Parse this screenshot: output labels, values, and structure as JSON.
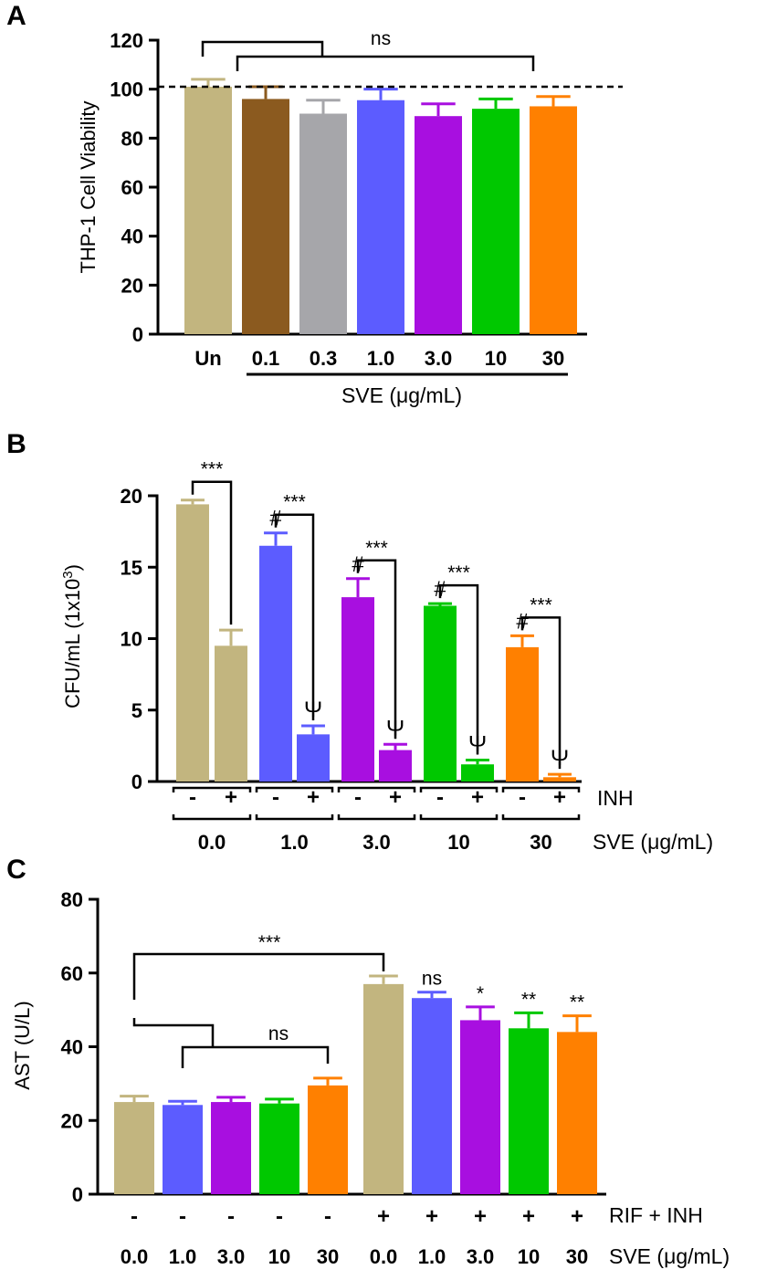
{
  "chart_data": [
    {
      "panel": "A",
      "type": "bar",
      "ylabel": "THP-1 Cell Viability",
      "ylim": [
        0,
        120
      ],
      "yticks": [
        0,
        20,
        40,
        60,
        80,
        100,
        120
      ],
      "categories": [
        "Un",
        "0.1",
        "0.3",
        "1.0",
        "3.0",
        "10",
        "30"
      ],
      "values": [
        101,
        96,
        90,
        95.5,
        89,
        92,
        93
      ],
      "errors": [
        3,
        5,
        5.5,
        4.5,
        5,
        4,
        4
      ],
      "colors": [
        "#c2b57f",
        "#8b5a1f",
        "#a6a6aa",
        "#5c5cff",
        "#a80fe0",
        "#00c800",
        "#ff8000"
      ],
      "reference_line": 101,
      "group_label": "SVE (μg/mL)",
      "annotations": [
        "ns"
      ]
    },
    {
      "panel": "B",
      "type": "bar",
      "ylabel": "CFU/mL (1x10",
      "ylabel_sup": "3",
      "ylabel_close": ")",
      "ylim": [
        0,
        20
      ],
      "yticks": [
        0,
        5,
        10,
        15,
        20
      ],
      "groups": [
        "0.0",
        "1.0",
        "3.0",
        "10",
        "30"
      ],
      "inh": [
        "-",
        "+"
      ],
      "values": [
        19.4,
        9.5,
        16.5,
        3.3,
        12.9,
        2.2,
        12.3,
        1.2,
        9.4,
        0.3
      ],
      "errors": [
        0.3,
        1.1,
        0.9,
        0.6,
        1.3,
        0.4,
        0.15,
        0.3,
        0.8,
        0.2
      ],
      "colors": [
        "#c2b57f",
        "#5c5cff",
        "#a80fe0",
        "#00c800",
        "#ff8000"
      ],
      "row1_label": "INH",
      "row2_label": "SVE (μg/mL)",
      "sig_label": "***",
      "hash_symbol": "#",
      "psi_symbol": "Ψ"
    },
    {
      "panel": "C",
      "type": "bar",
      "ylabel": "AST (U/L)",
      "ylim": [
        0,
        80
      ],
      "yticks": [
        0,
        20,
        40,
        60,
        80
      ],
      "sve": [
        "0.0",
        "1.0",
        "3.0",
        "10",
        "30",
        "0.0",
        "1.0",
        "3.0",
        "10",
        "30"
      ],
      "rif_inh": [
        "-",
        "-",
        "-",
        "-",
        "-",
        "+",
        "+",
        "+",
        "+",
        "+"
      ],
      "values": [
        25,
        24.2,
        25,
        24.6,
        29.5,
        57,
        53.2,
        47.2,
        45,
        44
      ],
      "errors": [
        1.6,
        1,
        1.3,
        1.2,
        2,
        2.2,
        1.6,
        3.6,
        4.2,
        4.4
      ],
      "colors": [
        "#c2b57f",
        "#5c5cff",
        "#a80fe0",
        "#00c800",
        "#ff8000"
      ],
      "row1_label": "RIF + INH",
      "row2_label": "SVE (μg/mL)",
      "bar_annotations": [
        "",
        "",
        "",
        "",
        "",
        "",
        "ns",
        "*",
        "**",
        "**"
      ],
      "bracket_labels": [
        "***",
        "ns"
      ]
    }
  ]
}
